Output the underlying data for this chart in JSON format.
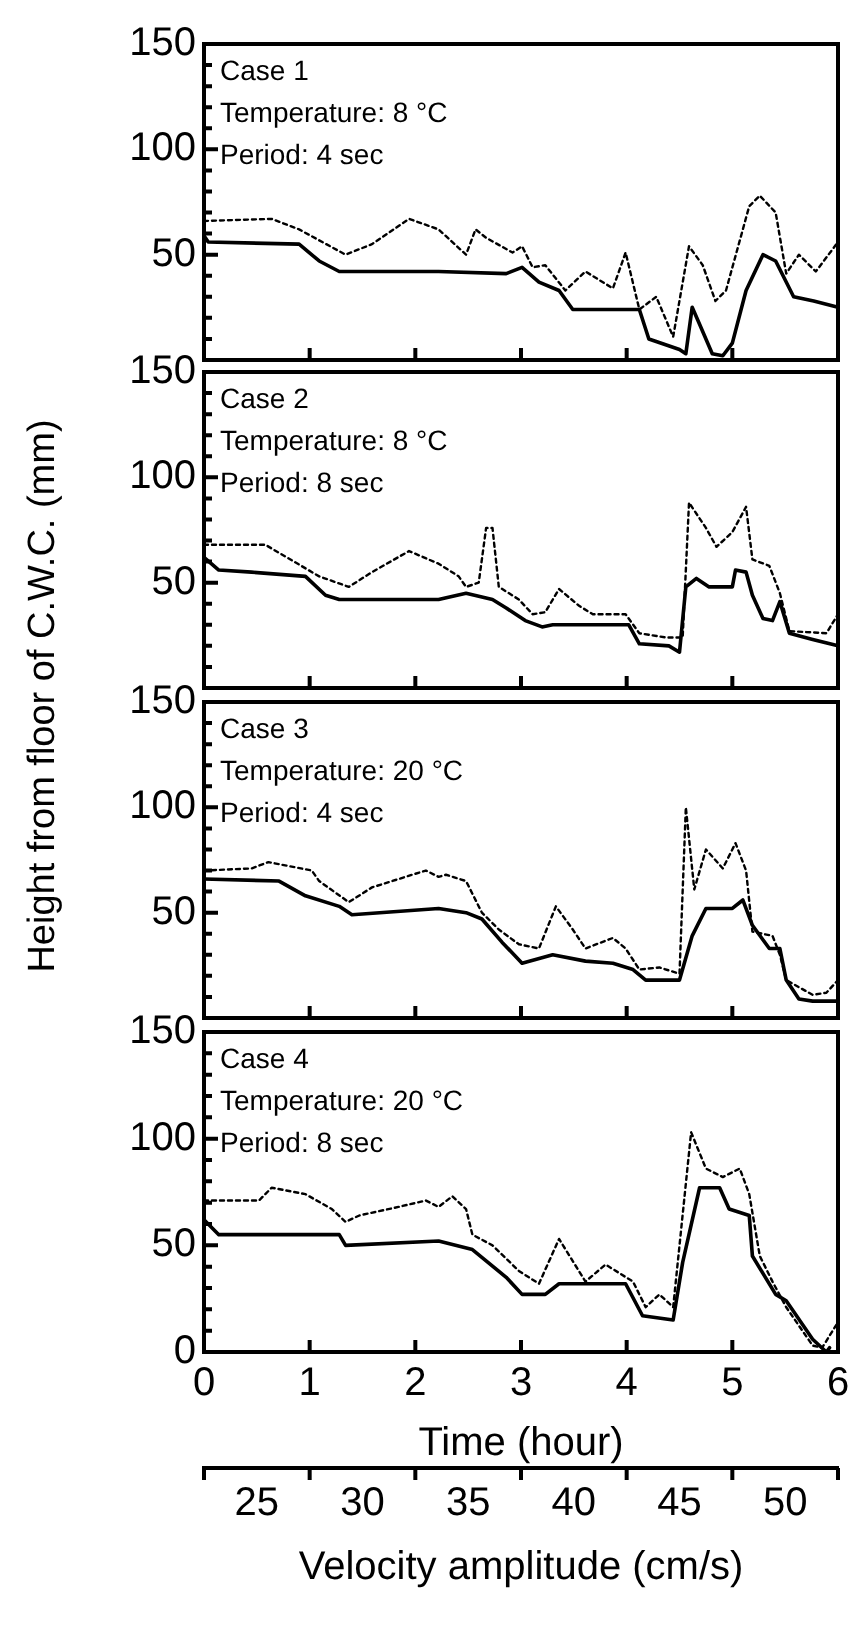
{
  "chart_data": [
    {
      "type": "line",
      "ylabel": "Height from floor of C.W.C. (mm)",
      "annotations": [
        "Case 1",
        "Temperature: 8 °C",
        "Period: 4 sec"
      ],
      "xlim": [
        0,
        6
      ],
      "xticks": [
        0,
        1,
        2,
        3,
        4,
        5,
        6
      ],
      "ylim": [
        0,
        150
      ],
      "yticks": [
        {
          "value": 0,
          "label": null
        },
        {
          "value": 10,
          "label": null
        },
        {
          "value": 20,
          "label": null
        },
        {
          "value": 30,
          "label": null
        },
        {
          "value": 40,
          "label": null
        },
        50,
        {
          "value": 60,
          "label": null
        },
        {
          "value": 70,
          "label": null
        },
        {
          "value": 80,
          "label": null
        },
        {
          "value": 90,
          "label": null
        },
        100,
        {
          "value": 110,
          "label": null
        },
        {
          "value": 120,
          "label": null
        },
        {
          "value": 130,
          "label": null
        },
        {
          "value": 140,
          "label": null
        },
        150
      ],
      "tick_labels": "y",
      "grid": false,
      "legend": false,
      "series": [
        {
          "color": "#000000",
          "line_style": "solid",
          "x": [
            0,
            0.04,
            0.9,
            1.09,
            1.28,
            2.22,
            2.86,
            3.01,
            3.17,
            3.36,
            3.49,
            4.12,
            4.21,
            4.5,
            4.56,
            4.62,
            4.69,
            4.81,
            4.91,
            5.0,
            5.13,
            5.29,
            5.41,
            5.58,
            5.77,
            6
          ],
          "values": [
            59,
            56,
            55,
            47,
            42,
            42,
            41,
            44,
            37,
            33,
            24,
            24,
            10,
            5,
            3,
            25,
            17,
            3,
            2,
            8,
            33,
            50,
            47,
            30,
            28,
            25
          ]
        },
        {
          "color": "#000000",
          "line_style": "dotted",
          "x": [
            0,
            0.64,
            0.9,
            1.34,
            1.59,
            1.94,
            2.22,
            2.48,
            2.57,
            2.67,
            2.92,
            3.01,
            3.11,
            3.23,
            3.42,
            3.61,
            3.87,
            3.99,
            4.12,
            4.28,
            4.44,
            4.59,
            4.72,
            4.84,
            4.94,
            5.16,
            5.26,
            5.41,
            5.51,
            5.63,
            5.79,
            6
          ],
          "values": [
            66,
            67,
            62,
            50,
            55,
            67,
            62,
            50,
            62,
            58,
            51,
            54,
            44,
            45,
            33,
            42,
            34,
            51,
            24,
            30,
            11,
            54,
            45,
            28,
            33,
            73,
            78,
            70,
            41,
            50,
            42,
            56
          ]
        }
      ]
    },
    {
      "type": "line",
      "annotations": [
        "Case 2",
        "Temperature: 8 °C",
        "Period: 8 sec"
      ],
      "xlim": [
        0,
        6
      ],
      "xticks": [
        0,
        1,
        2,
        3,
        4,
        5,
        6
      ],
      "ylim": [
        0,
        150
      ],
      "yticks": [
        {
          "value": 0,
          "label": null
        },
        {
          "value": 10,
          "label": null
        },
        {
          "value": 20,
          "label": null
        },
        {
          "value": 30,
          "label": null
        },
        {
          "value": 40,
          "label": null
        },
        50,
        {
          "value": 60,
          "label": null
        },
        {
          "value": 70,
          "label": null
        },
        {
          "value": 80,
          "label": null
        },
        {
          "value": 90,
          "label": null
        },
        100,
        {
          "value": 110,
          "label": null
        },
        {
          "value": 120,
          "label": null
        },
        {
          "value": 130,
          "label": null
        },
        {
          "value": 140,
          "label": null
        },
        150
      ],
      "tick_labels": "y",
      "grid": false,
      "legend": false,
      "series": [
        {
          "color": "#000000",
          "line_style": "solid",
          "x": [
            0,
            0.14,
            0.45,
            0.96,
            1.15,
            1.28,
            2.22,
            2.48,
            2.73,
            2.86,
            3.04,
            3.2,
            3.3,
            4.02,
            4.12,
            4.4,
            4.5,
            4.56,
            4.66,
            4.78,
            5.0,
            5.03,
            5.13,
            5.19,
            5.29,
            5.38,
            5.45,
            5.54,
            5.76,
            6
          ],
          "values": [
            62,
            56,
            55,
            53,
            44,
            42,
            42,
            45,
            42,
            38,
            32,
            29,
            30,
            30,
            21,
            20,
            17,
            48,
            52,
            48,
            48,
            56,
            55,
            44,
            33,
            32,
            41,
            26,
            23,
            20
          ]
        },
        {
          "color": "#000000",
          "line_style": "dotted",
          "x": [
            0,
            0.58,
            1.09,
            1.37,
            1.59,
            1.94,
            2.22,
            2.41,
            2.48,
            2.6,
            2.67,
            2.73,
            2.79,
            2.98,
            3.11,
            3.23,
            3.36,
            3.55,
            3.68,
            3.99,
            4.12,
            4.37,
            4.53,
            4.59,
            4.75,
            4.85,
            5.0,
            5.13,
            5.19,
            5.35,
            5.45,
            5.54,
            5.89,
            6
          ],
          "values": [
            68,
            68,
            53,
            48,
            55,
            65,
            59,
            53,
            48,
            50,
            76,
            76,
            48,
            42,
            35,
            36,
            47,
            39,
            35,
            35,
            26,
            24,
            24,
            88,
            76,
            67,
            74,
            86,
            61,
            58,
            45,
            27,
            26,
            35
          ]
        }
      ]
    },
    {
      "type": "line",
      "annotations": [
        "Case 3",
        "Temperature: 20 °C",
        "Period: 4 sec"
      ],
      "xlim": [
        0,
        6
      ],
      "xticks": [
        0,
        1,
        2,
        3,
        4,
        5,
        6
      ],
      "ylim": [
        0,
        150
      ],
      "yticks": [
        {
          "value": 0,
          "label": null
        },
        {
          "value": 10,
          "label": null
        },
        {
          "value": 20,
          "label": null
        },
        {
          "value": 30,
          "label": null
        },
        {
          "value": 40,
          "label": null
        },
        50,
        {
          "value": 60,
          "label": null
        },
        {
          "value": 70,
          "label": null
        },
        {
          "value": 80,
          "label": null
        },
        {
          "value": 90,
          "label": null
        },
        100,
        {
          "value": 110,
          "label": null
        },
        {
          "value": 120,
          "label": null
        },
        {
          "value": 130,
          "label": null
        },
        {
          "value": 140,
          "label": null
        },
        150
      ],
      "tick_labels": "y",
      "grid": false,
      "legend": false,
      "series": [
        {
          "color": "#000000",
          "line_style": "solid",
          "x": [
            0,
            0.71,
            0.96,
            1.28,
            1.4,
            2.22,
            2.48,
            2.63,
            2.82,
            3.01,
            3.3,
            3.61,
            3.87,
            4.06,
            4.18,
            4.5,
            4.62,
            4.75,
            5.0,
            5.1,
            5.19,
            5.35,
            5.45,
            5.51,
            5.63,
            5.76,
            6
          ],
          "values": [
            66,
            65,
            58,
            53,
            49,
            52,
            50,
            47,
            36,
            26,
            30,
            27,
            26,
            23,
            18,
            18,
            39,
            52,
            52,
            56,
            44,
            33,
            33,
            18,
            9,
            8,
            8
          ]
        },
        {
          "color": "#000000",
          "line_style": "dotted",
          "x": [
            0,
            0.45,
            0.61,
            1.02,
            1.09,
            1.37,
            1.59,
            1.97,
            2.1,
            2.22,
            2.29,
            2.48,
            2.63,
            2.79,
            2.98,
            3.17,
            3.33,
            3.49,
            3.61,
            3.87,
            3.99,
            4.12,
            4.31,
            4.5,
            4.56,
            4.64,
            4.75,
            4.91,
            5.03,
            5.13,
            5.19,
            5.38,
            5.45,
            5.51,
            5.76,
            5.89,
            6
          ],
          "values": [
            70,
            71,
            74,
            70,
            65,
            55,
            62,
            68,
            70,
            67,
            68,
            65,
            50,
            42,
            35,
            33,
            53,
            42,
            33,
            38,
            33,
            23,
            24,
            21,
            100,
            61,
            80,
            71,
            83,
            70,
            41,
            39,
            30,
            18,
            11,
            12,
            18
          ]
        }
      ]
    },
    {
      "type": "line",
      "xlabel": "Time (hour)",
      "x2label": "Velocity amplitude (cm/s)",
      "annotations": [
        "Case 4",
        "Temperature: 20 °C",
        "Period: 8 sec"
      ],
      "xlim": [
        0,
        6
      ],
      "xticks": [
        0,
        1,
        2,
        3,
        4,
        5,
        6
      ],
      "x2lim": [
        22.5,
        52.5
      ],
      "x2ticks": [
        {
          "value": 22.5,
          "label": null
        },
        25,
        {
          "value": 27.5,
          "label": null
        },
        30,
        {
          "value": 32.5,
          "label": null
        },
        35,
        {
          "value": 37.5,
          "label": null
        },
        40,
        {
          "value": 42.5,
          "label": null
        },
        45,
        {
          "value": 47.5,
          "label": null
        },
        50,
        {
          "value": 52.5,
          "label": null
        }
      ],
      "ylim": [
        0,
        150
      ],
      "yticks": [
        0,
        {
          "value": 10,
          "label": null
        },
        {
          "value": 20,
          "label": null
        },
        {
          "value": 30,
          "label": null
        },
        {
          "value": 40,
          "label": null
        },
        50,
        {
          "value": 60,
          "label": null
        },
        {
          "value": 70,
          "label": null
        },
        {
          "value": 80,
          "label": null
        },
        {
          "value": 90,
          "label": null
        },
        100,
        {
          "value": 110,
          "label": null
        },
        {
          "value": 120,
          "label": null
        },
        {
          "value": 130,
          "label": null
        },
        {
          "value": 140,
          "label": null
        },
        150
      ],
      "grid": false,
      "legend": false,
      "series": [
        {
          "color": "#000000",
          "line_style": "solid",
          "x": [
            0,
            0.14,
            1.28,
            1.34,
            2.22,
            2.54,
            2.86,
            3.01,
            3.23,
            3.36,
            3.99,
            4.15,
            4.44,
            4.53,
            4.69,
            4.88,
            4.97,
            5.16,
            5.19,
            5.41,
            5.51,
            5.76,
            5.89,
            5.92
          ],
          "values": [
            62,
            55,
            55,
            50,
            52,
            48,
            35,
            27,
            27,
            32,
            32,
            17,
            15,
            42,
            77,
            77,
            67,
            64,
            45,
            27,
            24,
            6,
            0,
            2
          ]
        },
        {
          "color": "#000000",
          "line_style": "dotted",
          "x": [
            0,
            0.52,
            0.64,
            0.96,
            1.21,
            1.34,
            1.47,
            1.84,
            2.1,
            2.22,
            2.35,
            2.48,
            2.54,
            2.73,
            2.98,
            3.17,
            3.36,
            3.61,
            3.8,
            4.06,
            4.18,
            4.31,
            4.44,
            4.61,
            4.75,
            4.91,
            5.07,
            5.16,
            5.26,
            5.38,
            5.51,
            5.76,
            5.85,
            6
          ],
          "values": [
            71,
            71,
            77,
            74,
            67,
            61,
            64,
            68,
            71,
            68,
            73,
            67,
            55,
            50,
            38,
            32,
            53,
            33,
            41,
            33,
            21,
            27,
            21,
            103,
            86,
            82,
            86,
            74,
            45,
            33,
            21,
            3,
            2,
            14
          ]
        }
      ]
    }
  ]
}
